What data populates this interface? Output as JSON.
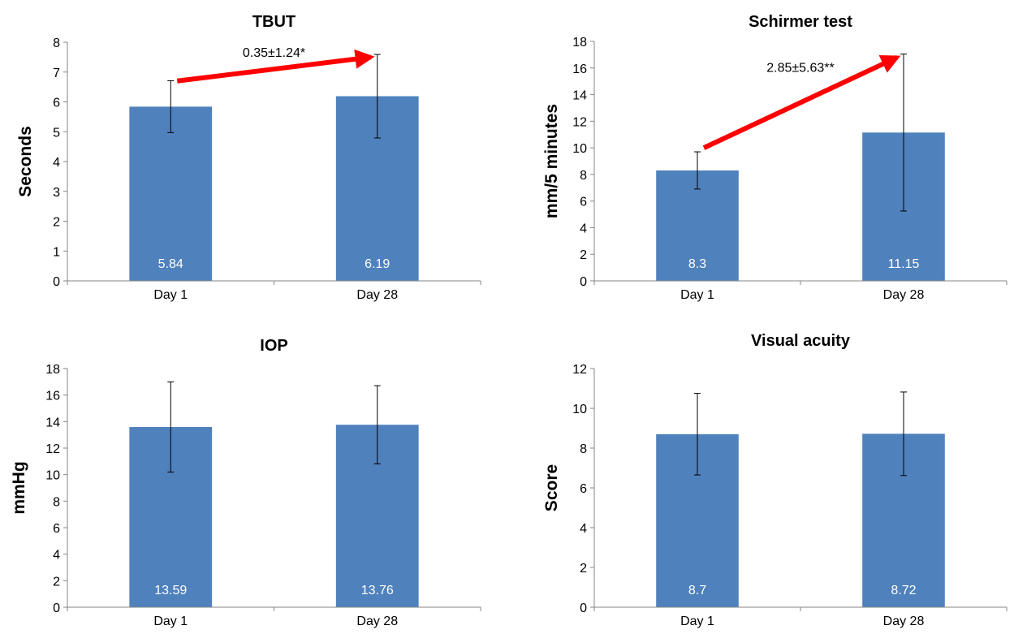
{
  "colors": {
    "bar": "#4F81BD",
    "arrow": "#FF0000",
    "error_bar": "#000000"
  },
  "chart_data": [
    {
      "type": "bar",
      "title": "TBUT",
      "ylabel": "Seconds",
      "xlabel": "",
      "categories": [
        "Day 1",
        "Day 28"
      ],
      "values": [
        5.84,
        6.19
      ],
      "data_labels": [
        "5.84",
        "6.19"
      ],
      "error": [
        0.87,
        1.4
      ],
      "ylim": [
        0,
        8
      ],
      "yticks": [
        0,
        1,
        2,
        3,
        4,
        5,
        6,
        7,
        8
      ],
      "ytick_labels": [
        "0",
        "1",
        "2",
        "3",
        "4",
        "5",
        "6",
        "7",
        "8"
      ],
      "grid": false,
      "annotation": {
        "text": "0.35±1.24*",
        "arrow_from": [
          0,
          6.7
        ],
        "arrow_to": [
          1,
          7.5
        ]
      }
    },
    {
      "type": "bar",
      "title": "Schirmer test",
      "ylabel": "mm/5 minutes",
      "xlabel": "",
      "categories": [
        "Day 1",
        "Day 28"
      ],
      "values": [
        8.3,
        11.15
      ],
      "data_labels": [
        "8.3",
        "11.15"
      ],
      "error": [
        1.4,
        5.9
      ],
      "ylim": [
        0,
        18
      ],
      "yticks": [
        0,
        2,
        4,
        6,
        8,
        10,
        12,
        14,
        16,
        18
      ],
      "ytick_labels": [
        "0",
        "2",
        "4",
        "6",
        "8",
        "10",
        "12",
        "14",
        "16",
        "18"
      ],
      "grid": false,
      "annotation": {
        "text": "2.85±5.63**",
        "arrow_from": [
          0,
          10
        ],
        "arrow_to": [
          1,
          16.8
        ]
      }
    },
    {
      "type": "bar",
      "title": "IOP",
      "ylabel": "mmHg",
      "xlabel": "",
      "categories": [
        "Day 1",
        "Day 28"
      ],
      "values": [
        13.59,
        13.76
      ],
      "data_labels": [
        "13.59",
        "13.76"
      ],
      "error": [
        3.4,
        2.95
      ],
      "ylim": [
        0,
        18
      ],
      "yticks": [
        0,
        2,
        4,
        6,
        8,
        10,
        12,
        14,
        16,
        18
      ],
      "ytick_labels": [
        "0",
        "2",
        "4",
        "6",
        "8",
        "10",
        "12",
        "14",
        "16",
        "18"
      ],
      "grid": false
    },
    {
      "type": "bar",
      "title": "Visual acuity",
      "ylabel": "Score",
      "xlabel": "",
      "categories": [
        "Day 1",
        "Day 28"
      ],
      "values": [
        8.7,
        8.72
      ],
      "data_labels": [
        "8.7",
        "8.72"
      ],
      "error": [
        2.05,
        2.1
      ],
      "ylim": [
        0,
        12
      ],
      "yticks": [
        0,
        2,
        4,
        6,
        8,
        10,
        12
      ],
      "ytick_labels": [
        "0",
        "2",
        "4",
        "6",
        "8",
        "10",
        "12"
      ],
      "grid": false
    }
  ]
}
